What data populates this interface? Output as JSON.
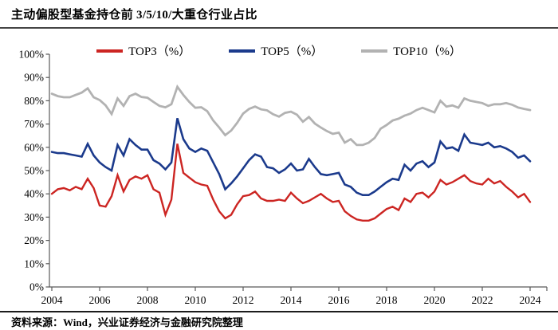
{
  "header": {
    "title": "主动偏股型基金持仓前 3/5/10/大重仓行业占比"
  },
  "footer": {
    "source": "资料来源：Wind，兴业证券经济与金融研究院整理"
  },
  "colors": {
    "top3_red": "#cc2522",
    "top5_blue": "#1b3a8c",
    "top10_gray": "#b2b2b2",
    "axis": "#595959",
    "rule_dark": "#454545",
    "background": "#ffffff"
  },
  "chart_data": {
    "type": "line",
    "title": "主动偏股型基金持仓前 3/5/10/大重仓行业占比",
    "xlabel": "",
    "ylabel": "",
    "grid": false,
    "legend_position": "top-center",
    "ylim": [
      0,
      100
    ],
    "xlim": [
      2004,
      2024.7
    ],
    "y_ticks": [
      0,
      10,
      20,
      30,
      40,
      50,
      60,
      70,
      80,
      90,
      100
    ],
    "y_tick_labels": [
      "0%",
      "10%",
      "20%",
      "30%",
      "40%",
      "50%",
      "60%",
      "70%",
      "80%",
      "90%",
      "100%"
    ],
    "x_ticks": [
      2004,
      2006,
      2008,
      2010,
      2012,
      2014,
      2016,
      2018,
      2020,
      2022,
      2024
    ],
    "x_tick_labels": [
      "2004",
      "2006",
      "2008",
      "2010",
      "2012",
      "2014",
      "2016",
      "2018",
      "2020",
      "2022",
      "2024"
    ],
    "x_unit": "year, quarterly points",
    "x": [
      2004.0,
      2004.25,
      2004.5,
      2004.75,
      2005.0,
      2005.25,
      2005.5,
      2005.75,
      2006.0,
      2006.25,
      2006.5,
      2006.75,
      2007.0,
      2007.25,
      2007.5,
      2007.75,
      2008.0,
      2008.25,
      2008.5,
      2008.75,
      2009.0,
      2009.25,
      2009.5,
      2009.75,
      2010.0,
      2010.25,
      2010.5,
      2010.75,
      2011.0,
      2011.25,
      2011.5,
      2011.75,
      2012.0,
      2012.25,
      2012.5,
      2012.75,
      2013.0,
      2013.25,
      2013.5,
      2013.75,
      2014.0,
      2014.25,
      2014.5,
      2014.75,
      2015.0,
      2015.25,
      2015.5,
      2015.75,
      2016.0,
      2016.25,
      2016.5,
      2016.75,
      2017.0,
      2017.25,
      2017.5,
      2017.75,
      2018.0,
      2018.25,
      2018.5,
      2018.75,
      2019.0,
      2019.25,
      2019.5,
      2019.75,
      2020.0,
      2020.25,
      2020.5,
      2020.75,
      2021.0,
      2021.25,
      2021.5,
      2021.75,
      2022.0,
      2022.25,
      2022.5,
      2022.75,
      2023.0,
      2023.25,
      2023.5,
      2023.75,
      2024.0
    ],
    "series": [
      {
        "name": "TOP3（%）",
        "color": "#cc2522",
        "stroke_width": 2.4,
        "values": [
          40.0,
          42.0,
          42.5,
          41.5,
          43.0,
          42.0,
          46.5,
          42.5,
          35.0,
          34.5,
          39.0,
          48.0,
          41.0,
          46.0,
          47.5,
          46.5,
          48.0,
          42.0,
          40.5,
          31.0,
          37.5,
          61.5,
          49.0,
          47.0,
          45.0,
          44.0,
          43.5,
          37.5,
          32.5,
          29.5,
          31.0,
          35.5,
          39.0,
          39.5,
          41.0,
          38.0,
          37.0,
          37.0,
          37.5,
          37.0,
          40.5,
          38.0,
          36.0,
          37.0,
          38.5,
          40.0,
          38.0,
          36.5,
          37.0,
          32.5,
          30.5,
          29.0,
          28.5,
          28.5,
          29.5,
          31.5,
          33.5,
          34.5,
          33.0,
          38.0,
          36.5,
          40.0,
          40.5,
          38.5,
          41.0,
          46.0,
          44.0,
          45.0,
          46.5,
          48.0,
          45.5,
          44.5,
          44.0,
          46.5,
          44.5,
          45.5,
          43.0,
          41.0,
          38.5,
          40.0,
          36.5
        ]
      },
      {
        "name": "TOP5（%）",
        "color": "#1b3a8c",
        "stroke_width": 2.6,
        "values": [
          58.0,
          57.5,
          57.5,
          57.0,
          56.5,
          56.0,
          61.5,
          56.5,
          53.5,
          51.5,
          50.0,
          61.0,
          56.5,
          63.5,
          61.0,
          59.0,
          59.0,
          54.5,
          53.0,
          50.5,
          53.5,
          72.5,
          63.5,
          59.5,
          58.0,
          59.5,
          58.5,
          53.5,
          48.5,
          42.0,
          44.5,
          47.5,
          51.0,
          54.5,
          57.0,
          56.0,
          51.5,
          51.0,
          49.0,
          50.5,
          53.0,
          50.0,
          50.5,
          55.0,
          51.5,
          48.5,
          48.0,
          48.5,
          49.0,
          44.0,
          43.0,
          40.5,
          39.5,
          39.5,
          41.0,
          43.0,
          45.0,
          46.5,
          46.0,
          52.5,
          50.0,
          53.0,
          54.0,
          51.5,
          53.5,
          62.5,
          59.5,
          60.0,
          58.5,
          65.5,
          62.0,
          61.5,
          61.0,
          62.0,
          60.0,
          60.5,
          59.5,
          58.0,
          55.5,
          56.5,
          54.0
        ]
      },
      {
        "name": "TOP10（%）",
        "color": "#b2b2b2",
        "stroke_width": 2.8,
        "values": [
          83.0,
          82.0,
          81.5,
          81.5,
          82.5,
          83.5,
          85.3,
          81.5,
          80.3,
          78.0,
          74.3,
          81.0,
          77.8,
          82.0,
          83.0,
          81.6,
          81.3,
          79.5,
          77.8,
          77.2,
          78.5,
          86.0,
          82.5,
          79.5,
          77.0,
          77.2,
          75.5,
          71.5,
          68.5,
          65.2,
          67.2,
          70.5,
          74.5,
          76.5,
          77.5,
          76.3,
          75.9,
          74.2,
          73.2,
          74.8,
          75.3,
          74.0,
          71.0,
          73.0,
          70.2,
          68.5,
          67.0,
          65.8,
          66.3,
          62.0,
          63.5,
          61.0,
          61.0,
          62.0,
          64.0,
          68.0,
          69.6,
          71.5,
          72.3,
          73.6,
          74.5,
          76.0,
          77.0,
          76.0,
          75.0,
          80.0,
          77.5,
          78.0,
          77.0,
          81.0,
          80.0,
          79.5,
          79.0,
          77.8,
          78.5,
          78.5,
          79.0,
          78.3,
          77.1,
          76.5,
          76.0
        ]
      }
    ]
  }
}
